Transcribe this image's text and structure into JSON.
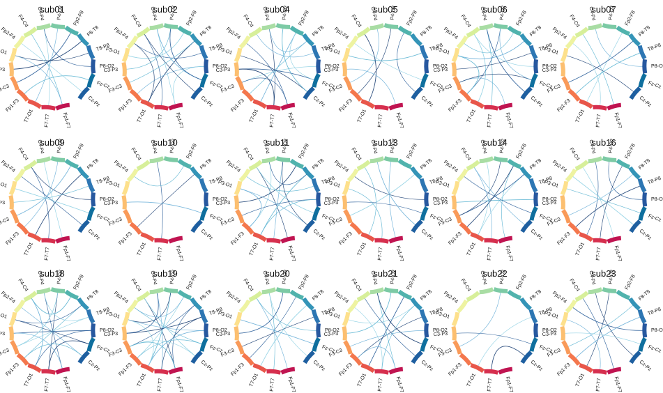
{
  "chart_data": {
    "type": "chord",
    "channels": [
      "Fp1-F7",
      "F7-T7",
      "T7-O1",
      "Fp1-F3",
      "F3-C3",
      "C3-P3",
      "P3-O1",
      "Fp2-F4",
      "F4-C4",
      "C4-P4",
      "P4-O2",
      "Fp2-F8",
      "F8-T8",
      "T8-P8",
      "P8-O2",
      "Fz-Cz",
      "Cz-Pz"
    ],
    "segment_colors": [
      "#c01451",
      "#d62f4e",
      "#e8564a",
      "#f4774d",
      "#f99a59",
      "#fcbf70",
      "#fde08c",
      "#eef3a1",
      "#d7ef9a",
      "#a9dda4",
      "#7ccaa5",
      "#51b3ad",
      "#3494b7",
      "#2d76b3",
      "#27589f",
      "#0f6f9e",
      "#1e5fa0"
    ],
    "panels": [
      {
        "title": "sub01",
        "links": [
          [
            0,
            8
          ],
          [
            1,
            9
          ],
          [
            4,
            11
          ],
          [
            6,
            13
          ],
          [
            2,
            10
          ],
          [
            3,
            15
          ],
          [
            7,
            16
          ],
          [
            9,
            14
          ],
          [
            5,
            12
          ],
          [
            0,
            6
          ]
        ]
      },
      {
        "title": "sub02",
        "links": [
          [
            0,
            9
          ],
          [
            1,
            8
          ],
          [
            2,
            12
          ],
          [
            3,
            14
          ],
          [
            5,
            10
          ],
          [
            6,
            11
          ],
          [
            7,
            13
          ],
          [
            8,
            16
          ],
          [
            9,
            15
          ],
          [
            4,
            12
          ],
          [
            0,
            14
          ],
          [
            10,
            15
          ],
          [
            2,
            7
          ]
        ]
      },
      {
        "title": "sub04",
        "links": [
          [
            0,
            7
          ],
          [
            1,
            9
          ],
          [
            2,
            11
          ],
          [
            3,
            12
          ],
          [
            4,
            14
          ],
          [
            5,
            15
          ],
          [
            6,
            16
          ],
          [
            8,
            13
          ],
          [
            10,
            16
          ],
          [
            11,
            15
          ],
          [
            0,
            4
          ],
          [
            1,
            5
          ],
          [
            9,
            12
          ]
        ]
      },
      {
        "title": "sub05",
        "links": [
          [
            3,
            10
          ],
          [
            4,
            9
          ],
          [
            6,
            13
          ],
          [
            7,
            15
          ],
          [
            11,
            16
          ],
          [
            2,
            8
          ],
          [
            0,
            5
          ]
        ]
      },
      {
        "title": "sub06",
        "links": [
          [
            0,
            4
          ],
          [
            1,
            9
          ],
          [
            2,
            8
          ],
          [
            3,
            10
          ],
          [
            5,
            13
          ],
          [
            6,
            12
          ],
          [
            7,
            11
          ],
          [
            8,
            14
          ],
          [
            9,
            16
          ],
          [
            4,
            15
          ],
          [
            10,
            15
          ],
          [
            3,
            6
          ]
        ]
      },
      {
        "title": "sub07",
        "links": [
          [
            0,
            8
          ],
          [
            2,
            11
          ],
          [
            4,
            12
          ],
          [
            6,
            16
          ],
          [
            9,
            14
          ],
          [
            3,
            13
          ],
          [
            1,
            7
          ]
        ]
      },
      {
        "title": "sub09",
        "links": [
          [
            0,
            9
          ],
          [
            1,
            8
          ],
          [
            2,
            12
          ],
          [
            3,
            10
          ],
          [
            5,
            13
          ],
          [
            6,
            15
          ],
          [
            7,
            16
          ],
          [
            8,
            14
          ],
          [
            4,
            11
          ]
        ]
      },
      {
        "title": "sub10",
        "links": [
          [
            1,
            9
          ],
          [
            3,
            12
          ],
          [
            5,
            15
          ],
          [
            7,
            11
          ]
        ]
      },
      {
        "title": "sub11",
        "links": [
          [
            0,
            8
          ],
          [
            1,
            10
          ],
          [
            2,
            12
          ],
          [
            3,
            9
          ],
          [
            4,
            14
          ],
          [
            5,
            11
          ],
          [
            6,
            16
          ],
          [
            7,
            13
          ],
          [
            8,
            15
          ],
          [
            9,
            12
          ],
          [
            10,
            16
          ],
          [
            3,
            6
          ],
          [
            2,
            14
          ]
        ]
      },
      {
        "title": "sub13",
        "links": [
          [
            0,
            10
          ],
          [
            2,
            8
          ],
          [
            4,
            12
          ],
          [
            5,
            15
          ],
          [
            7,
            14
          ],
          [
            9,
            16
          ],
          [
            1,
            6
          ]
        ]
      },
      {
        "title": "sub14",
        "links": [
          [
            0,
            11
          ],
          [
            2,
            12
          ],
          [
            4,
            12
          ],
          [
            4,
            10
          ],
          [
            8,
            16
          ],
          [
            5,
            14
          ],
          [
            9,
            2
          ],
          [
            7,
            15
          ],
          [
            3,
            11
          ],
          [
            1,
            8
          ]
        ]
      },
      {
        "title": "sub16",
        "links": [
          [
            0,
            8
          ],
          [
            2,
            9
          ],
          [
            3,
            13
          ],
          [
            4,
            12
          ],
          [
            6,
            15
          ],
          [
            7,
            16
          ],
          [
            10,
            14
          ],
          [
            1,
            11
          ]
        ]
      },
      {
        "title": "sub18",
        "links": [
          [
            0,
            9
          ],
          [
            1,
            10
          ],
          [
            2,
            8
          ],
          [
            3,
            12
          ],
          [
            4,
            13
          ],
          [
            5,
            14
          ],
          [
            6,
            15
          ],
          [
            7,
            16
          ],
          [
            8,
            11
          ],
          [
            9,
            13
          ],
          [
            2,
            14
          ],
          [
            1,
            15
          ],
          [
            0,
            5
          ],
          [
            3,
            16
          ],
          [
            4,
            10
          ],
          [
            6,
            12
          ]
        ]
      },
      {
        "title": "sub19",
        "links": [
          [
            0,
            8
          ],
          [
            1,
            9
          ],
          [
            2,
            10
          ],
          [
            3,
            11
          ],
          [
            4,
            12
          ],
          [
            5,
            13
          ],
          [
            6,
            14
          ],
          [
            7,
            15
          ],
          [
            8,
            16
          ],
          [
            0,
            12
          ],
          [
            1,
            13
          ],
          [
            2,
            14
          ],
          [
            3,
            15
          ],
          [
            4,
            16
          ],
          [
            5,
            9
          ],
          [
            6,
            10
          ],
          [
            7,
            11
          ],
          [
            0,
            4
          ],
          [
            2,
            6
          ]
        ]
      },
      {
        "title": "sub20",
        "links": [
          [
            0,
            8
          ],
          [
            1,
            9
          ],
          [
            2,
            12
          ],
          [
            3,
            11
          ],
          [
            4,
            13
          ],
          [
            6,
            15
          ],
          [
            8,
            14
          ],
          [
            9,
            16
          ],
          [
            5,
            10
          ]
        ]
      },
      {
        "title": "sub21",
        "links": [
          [
            0,
            9
          ],
          [
            1,
            7
          ],
          [
            2,
            11
          ],
          [
            3,
            13
          ],
          [
            4,
            14
          ],
          [
            5,
            10
          ],
          [
            6,
            12
          ],
          [
            8,
            16
          ],
          [
            9,
            15
          ],
          [
            0,
            3
          ],
          [
            1,
            12
          ]
        ]
      },
      {
        "title": "sub22",
        "links": [
          [
            2,
            13
          ],
          [
            5,
            15
          ],
          [
            1,
            16
          ],
          [
            4,
            10
          ]
        ]
      },
      {
        "title": "sub23",
        "links": [
          [
            0,
            8
          ],
          [
            2,
            10
          ],
          [
            3,
            13
          ],
          [
            4,
            12
          ],
          [
            5,
            15
          ],
          [
            7,
            14
          ],
          [
            9,
            16
          ],
          [
            1,
            6
          ]
        ]
      }
    ]
  }
}
